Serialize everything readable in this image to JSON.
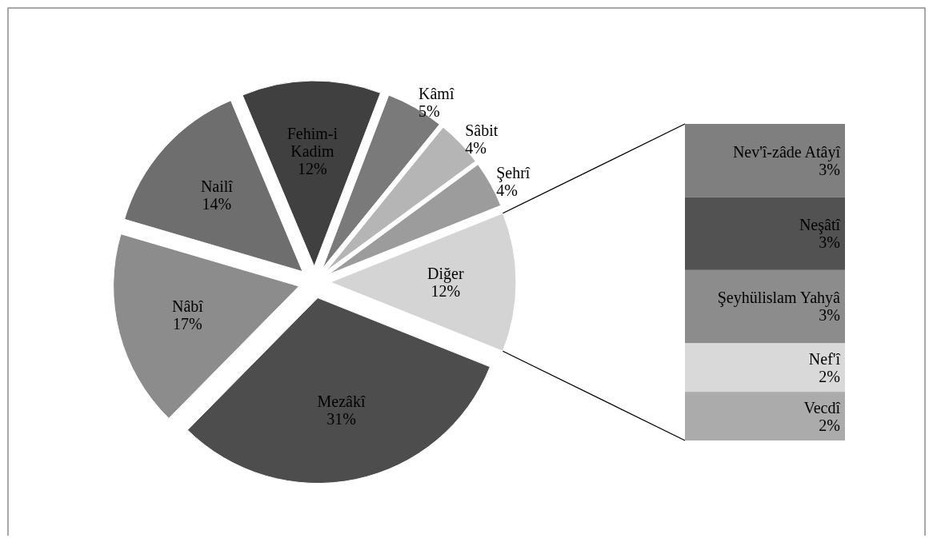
{
  "chart_data": [
    {
      "type": "pie",
      "categories": [
        "Mezâkî",
        "Nâbî",
        "Nailî",
        "Fehim-i Kadim",
        "Kâmî",
        "Sâbit",
        "Şehrî",
        "Diğer"
      ],
      "values": [
        31,
        17,
        14,
        12,
        5,
        4,
        4,
        12
      ],
      "value_labels": [
        "31%",
        "17%",
        "14%",
        "12%",
        "5%",
        "4%",
        "4%",
        "12%"
      ],
      "colors": [
        "#4d4d4d",
        "#8c8c8c",
        "#6e6e6e",
        "#404040",
        "#7a7a7a",
        "#b5b5b5",
        "#9c9c9c",
        "#d4d4d4"
      ]
    },
    {
      "type": "bar",
      "stacked": true,
      "categories": [
        null
      ],
      "series": [
        {
          "name": "Vecdî",
          "color": "#ababab",
          "values": [
            2
          ],
          "value_labels": [
            "2%"
          ]
        },
        {
          "name": "Nef'î",
          "color": "#d9d9d9",
          "values": [
            2
          ],
          "value_labels": [
            "2%"
          ]
        },
        {
          "name": "Şeyhülislam Yahyâ",
          "color": "#8c8c8c",
          "values": [
            3
          ],
          "value_labels": [
            "3%"
          ]
        },
        {
          "name": "Neşâtî",
          "color": "#525252",
          "values": [
            3
          ],
          "value_labels": [
            "3%"
          ]
        },
        {
          "name": "Nev'î-zâde Atâyî",
          "color": "#7f7f7f",
          "values": [
            3
          ],
          "value_labels": [
            "3%"
          ]
        }
      ]
    }
  ]
}
